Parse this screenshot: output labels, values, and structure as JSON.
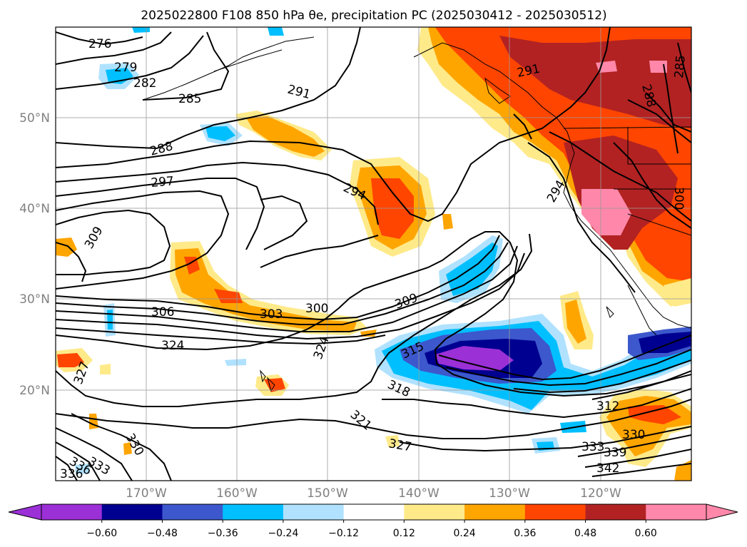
{
  "title": "2025022800 F108 850 hPa θe, precipitation PC (2025030412 - 2025030512)",
  "lon_ticks": [
    "170°W",
    "160°W",
    "150°W",
    "140°W",
    "130°W",
    "120°W"
  ],
  "lat_ticks": [
    "50°N",
    "40°N",
    "30°N",
    "20°N"
  ],
  "colorbar": {
    "ticks": [
      "−0.60",
      "−0.48",
      "−0.36",
      "−0.24",
      "−0.12",
      "0.12",
      "0.24",
      "0.36",
      "0.48",
      "0.60"
    ],
    "colors": [
      "#9b30d6",
      "#000090",
      "#3c58cc",
      "#00bfff",
      "#b0e2ff",
      "#ffffff",
      "#ffea8a",
      "#ffa500",
      "#ff4500",
      "#b22222",
      "#ff88aa",
      "#ff88aa"
    ],
    "under_color": "#9b30d6",
    "over_color": "#ff88aa"
  },
  "contour_labels": [
    "276",
    "279",
    "282",
    "285",
    "288",
    "291",
    "291",
    "288",
    "285",
    "294",
    "294",
    "297",
    "300",
    "300",
    "303",
    "306",
    "309",
    "309",
    "312",
    "315",
    "318",
    "321",
    "324",
    "324",
    "327",
    "327",
    "330",
    "330",
    "333",
    "333",
    "336",
    "336",
    "339",
    "342"
  ],
  "map": {
    "lon_range": [
      -180,
      -110
    ],
    "lat_range": [
      10,
      60
    ],
    "grid": true,
    "field_contours": "850 hPa equivalent potential temperature (K)",
    "field_shading": "precipitation PC"
  }
}
